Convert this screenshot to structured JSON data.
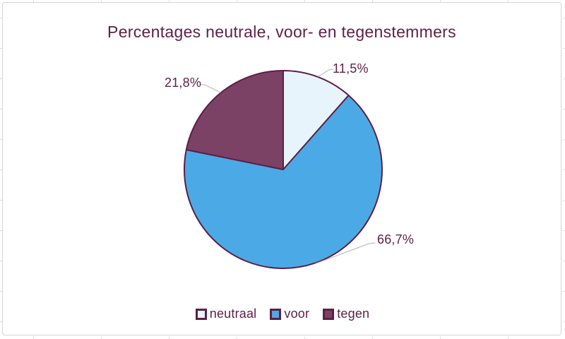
{
  "chart_data": {
    "type": "pie",
    "title": "Percentages neutrale, voor- en tegenstemmers",
    "labels": [
      "neutraal",
      "voor",
      "tegen"
    ],
    "values": [
      11.5,
      66.7,
      21.8
    ],
    "data_labels": [
      "11,5%",
      "66,7%",
      "21,8%"
    ],
    "colors": [
      "#E7F4FB",
      "#4BAAE5",
      "#7B4266"
    ],
    "start_angle_deg": 0,
    "direction": "clockwise",
    "legend_position": "bottom",
    "grid": false
  },
  "style": {
    "pie_border_color": "#5C1F46",
    "text_color": "#5E2148",
    "leader_line_color": "#C0C0C0",
    "chart_frame_border_color": "#D5D5D5",
    "background_color": "#FFFFFF"
  }
}
